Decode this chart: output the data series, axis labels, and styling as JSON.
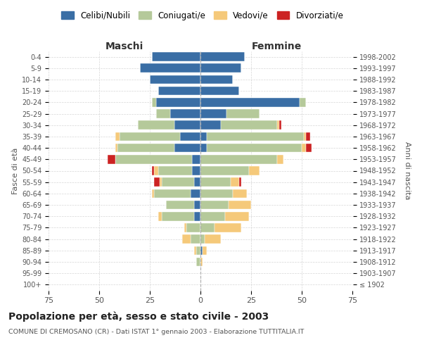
{
  "age_groups": [
    "100+",
    "95-99",
    "90-94",
    "85-89",
    "80-84",
    "75-79",
    "70-74",
    "65-69",
    "60-64",
    "55-59",
    "50-54",
    "45-49",
    "40-44",
    "35-39",
    "30-34",
    "25-29",
    "20-24",
    "15-19",
    "10-14",
    "5-9",
    "0-4"
  ],
  "birth_years": [
    "≤ 1902",
    "1903-1907",
    "1908-1912",
    "1913-1917",
    "1918-1922",
    "1923-1927",
    "1928-1932",
    "1933-1937",
    "1938-1942",
    "1943-1947",
    "1948-1952",
    "1953-1957",
    "1958-1962",
    "1963-1967",
    "1968-1972",
    "1973-1977",
    "1978-1982",
    "1983-1987",
    "1988-1992",
    "1993-1997",
    "1998-2002"
  ],
  "male": {
    "celibi": [
      0,
      0,
      0,
      0,
      0,
      0,
      3,
      3,
      5,
      3,
      4,
      4,
      13,
      10,
      13,
      15,
      22,
      21,
      25,
      30,
      24
    ],
    "coniugati": [
      0,
      0,
      2,
      2,
      5,
      7,
      16,
      14,
      18,
      16,
      17,
      38,
      28,
      30,
      18,
      7,
      2,
      0,
      0,
      0,
      0
    ],
    "vedovi": [
      0,
      0,
      0,
      1,
      4,
      1,
      2,
      0,
      1,
      1,
      2,
      0,
      1,
      2,
      0,
      0,
      0,
      0,
      0,
      0,
      0
    ],
    "divorziati": [
      0,
      0,
      0,
      0,
      0,
      0,
      0,
      0,
      0,
      3,
      1,
      4,
      0,
      0,
      0,
      0,
      0,
      0,
      0,
      0,
      0
    ]
  },
  "female": {
    "nubili": [
      0,
      0,
      0,
      1,
      0,
      0,
      0,
      0,
      0,
      0,
      0,
      0,
      3,
      3,
      10,
      13,
      49,
      19,
      16,
      20,
      22
    ],
    "coniugate": [
      0,
      0,
      0,
      0,
      2,
      7,
      12,
      14,
      16,
      15,
      24,
      38,
      47,
      48,
      28,
      16,
      3,
      0,
      0,
      0,
      0
    ],
    "vedove": [
      0,
      0,
      1,
      2,
      8,
      13,
      12,
      11,
      7,
      4,
      5,
      3,
      2,
      1,
      1,
      0,
      0,
      0,
      0,
      0,
      0
    ],
    "divorziate": [
      0,
      0,
      0,
      0,
      0,
      0,
      0,
      0,
      0,
      1,
      0,
      0,
      3,
      2,
      1,
      0,
      0,
      0,
      0,
      0,
      0
    ]
  },
  "colors": {
    "celibi": "#3a6ea5",
    "coniugati": "#b5c99a",
    "vedovi": "#f5c97a",
    "divorziati": "#cc2222"
  },
  "xlim": 75,
  "title": "Popolazione per età, sesso e stato civile - 2003",
  "subtitle": "COMUNE DI CREMOSANO (CR) - Dati ISTAT 1° gennaio 2003 - Elaborazione TUTTITALIA.IT",
  "ylabel_left": "Fasce di età",
  "ylabel_right": "Anni di nascita",
  "legend_labels": [
    "Celibi/Nubili",
    "Coniugati/e",
    "Vedovi/e",
    "Divorziati/e"
  ],
  "maschi_label": "Maschi",
  "femmine_label": "Femmine",
  "background_color": "#ffffff",
  "grid_color": "#cccccc"
}
